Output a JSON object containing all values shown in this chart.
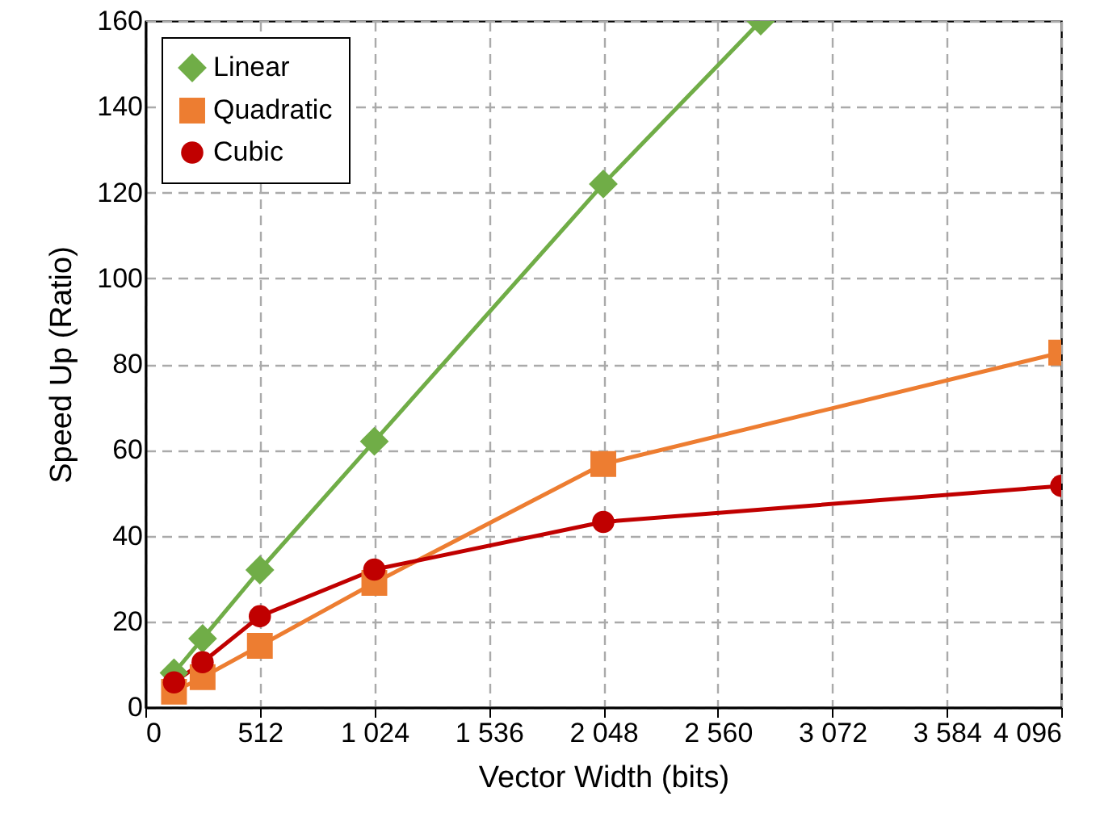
{
  "chart_data": {
    "type": "line",
    "xlabel": "Vector Width (bits)",
    "ylabel": "Speed Up (Ratio)",
    "x": [
      128,
      256,
      512,
      1024,
      2048,
      4096
    ],
    "xlim": [
      0,
      4096
    ],
    "xticks": [
      0,
      512,
      {
        "value": 1024,
        "label": "1 024"
      },
      {
        "value": 1536,
        "label": "1 536"
      },
      {
        "value": 2048,
        "label": "2 048"
      },
      {
        "value": 2560,
        "label": "2 560"
      },
      {
        "value": 3072,
        "label": "3 072"
      },
      {
        "value": 3584,
        "label": "3 584"
      },
      {
        "value": 4096,
        "label": "4 096"
      }
    ],
    "ylim": [
      0,
      160
    ],
    "yticks": [
      0,
      20,
      40,
      60,
      80,
      100,
      120,
      140,
      160
    ],
    "grid": true,
    "legend": "top left",
    "line_style": "solid",
    "series": [
      {
        "name": "Linear",
        "color": "#70ad47",
        "marker": "diamond",
        "x": [
          128,
          256,
          512,
          1024,
          2048,
          2752
        ],
        "values": [
          8,
          16,
          32,
          62,
          122,
          160
        ]
      },
      {
        "name": "Quadratic",
        "color": "#ed7d31",
        "marker": "square",
        "values": [
          3.6,
          7,
          14.3,
          29,
          56.7,
          82.7
        ]
      },
      {
        "name": "Cubic",
        "color": "#c00000",
        "marker": "circle",
        "values": [
          5.8,
          10.5,
          21.2,
          32.1,
          43.2,
          51.6
        ]
      }
    ]
  }
}
